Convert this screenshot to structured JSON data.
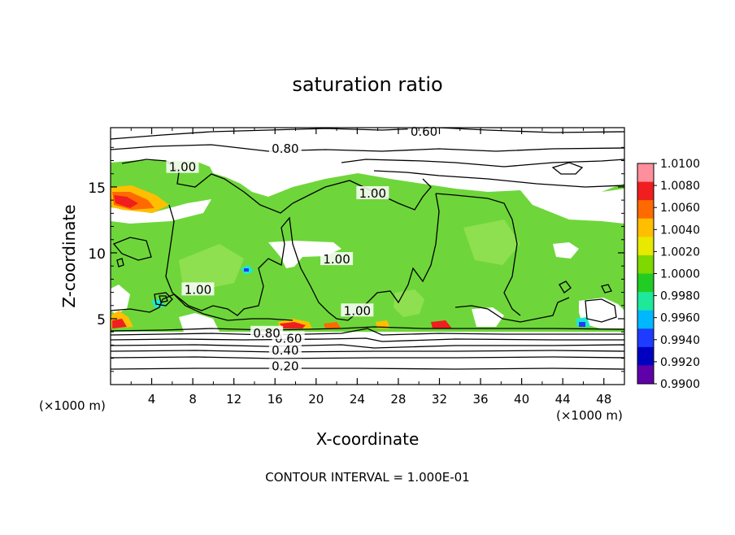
{
  "chart_data": {
    "type": "contour",
    "title": "saturation ratio",
    "xlabel": "X-coordinate",
    "ylabel": "Z-coordinate",
    "x_unit_left": "(×1000 m)",
    "x_unit_right": "(×1000 m)",
    "xlim": [
      0,
      50
    ],
    "ylim": [
      0,
      19.5
    ],
    "xticks": [
      4,
      8,
      12,
      16,
      20,
      24,
      28,
      32,
      36,
      40,
      44,
      48
    ],
    "yticks": [
      5,
      10,
      15
    ],
    "footer": "CONTOUR INTERVAL = 1.000E-01",
    "contour_labels": [
      {
        "text": "0.20",
        "x": 17,
        "z": 1.4
      },
      {
        "text": "0.40",
        "x": 17,
        "z": 2.6
      },
      {
        "text": "0.60",
        "x": 17.3,
        "z": 3.5
      },
      {
        "text": "0.80",
        "x": 15.2,
        "z": 3.9
      },
      {
        "text": "0.80",
        "x": 17,
        "z": 17.9
      },
      {
        "text": "0.60",
        "x": 30.5,
        "z": 19.2
      },
      {
        "text": "1.00",
        "x": 7,
        "z": 16.5
      },
      {
        "text": "1.00",
        "x": 25.5,
        "z": 14.5
      },
      {
        "text": "1.00",
        "x": 22,
        "z": 9.5
      },
      {
        "text": "1.00",
        "x": 8.5,
        "z": 7.2
      },
      {
        "text": "1.00",
        "x": 24,
        "z": 5.6
      }
    ],
    "colorbar": {
      "levels": [
        "1.0100",
        "1.0080",
        "1.0060",
        "1.0040",
        "1.0020",
        "1.0000",
        "0.9980",
        "0.9960",
        "0.9940",
        "0.9920",
        "0.9900"
      ],
      "colors": [
        "#ff8f9c",
        "#f01e1e",
        "#ff6a00",
        "#ffbf00",
        "#e8e800",
        "#7fd800",
        "#22cc22",
        "#1ee89a",
        "#00b8ff",
        "#1e3cff",
        "#0000c0",
        "#6000a8"
      ]
    },
    "colors": {
      "field": "#6ed63a",
      "field_light": "#8ee050",
      "moist_high": "#f01e1e",
      "moist_mid": "#ff6a00",
      "moist_low": "#ffbf00",
      "dry_cyan": "#1ee8d0",
      "dry_blue": "#1e3cff",
      "contour": "#000000"
    }
  }
}
